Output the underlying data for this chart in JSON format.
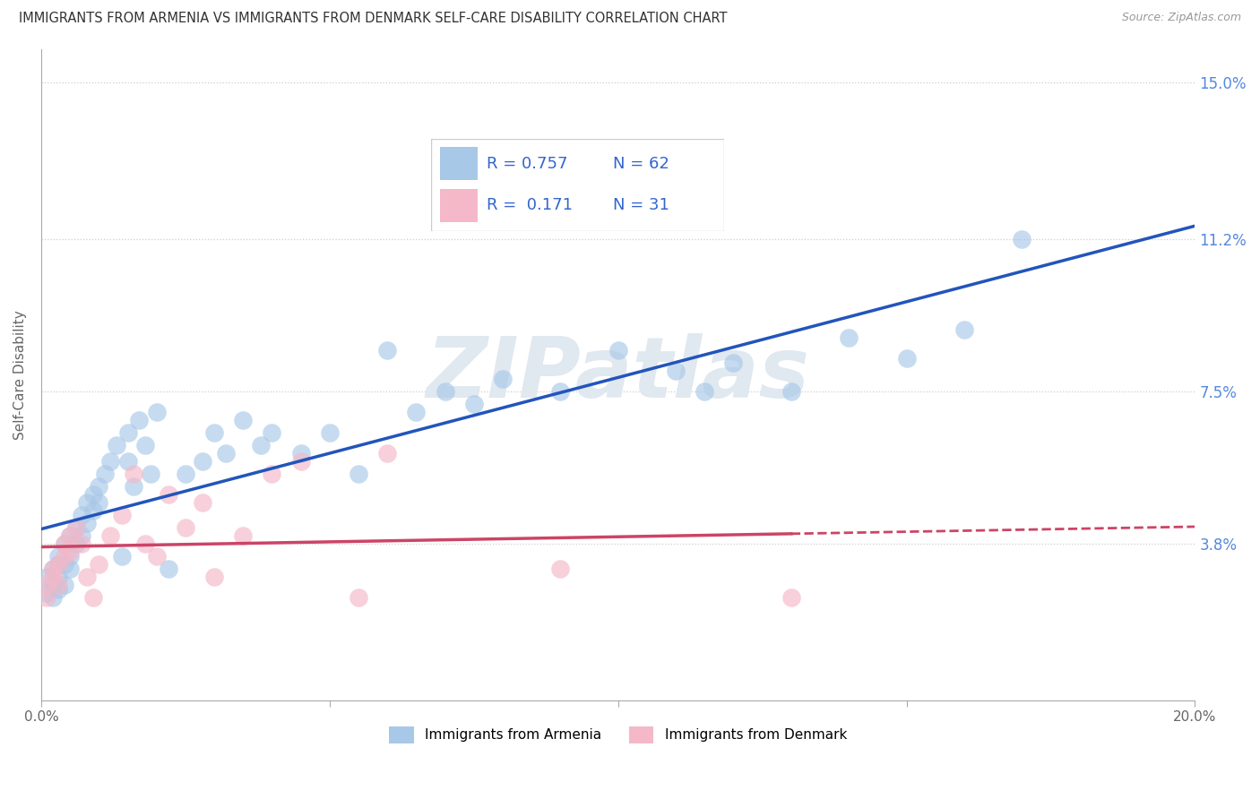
{
  "title": "IMMIGRANTS FROM ARMENIA VS IMMIGRANTS FROM DENMARK SELF-CARE DISABILITY CORRELATION CHART",
  "source": "Source: ZipAtlas.com",
  "ylabel": "Self-Care Disability",
  "xlim": [
    0.0,
    0.2
  ],
  "ylim": [
    0.0,
    0.158
  ],
  "yticks": [
    0.038,
    0.075,
    0.112,
    0.15
  ],
  "ytick_labels": [
    "3.8%",
    "7.5%",
    "11.2%",
    "15.0%"
  ],
  "xticks": [
    0.0,
    0.05,
    0.1,
    0.15,
    0.2
  ],
  "xtick_labels": [
    "0.0%",
    "",
    "",
    "",
    "20.0%"
  ],
  "r_armenia": 0.757,
  "n_armenia": 62,
  "r_denmark": 0.171,
  "n_denmark": 31,
  "color_armenia": "#a8c8e8",
  "color_denmark": "#f4b8c8",
  "color_armenia_line": "#2255bb",
  "color_denmark_line": "#cc4466",
  "legend_text_color": "#3366cc",
  "watermark_color": "#e0e8f0",
  "armenia_x": [
    0.001,
    0.001,
    0.002,
    0.002,
    0.002,
    0.003,
    0.003,
    0.003,
    0.003,
    0.004,
    0.004,
    0.004,
    0.005,
    0.005,
    0.005,
    0.006,
    0.006,
    0.007,
    0.007,
    0.008,
    0.008,
    0.009,
    0.009,
    0.01,
    0.01,
    0.011,
    0.012,
    0.013,
    0.014,
    0.015,
    0.015,
    0.016,
    0.017,
    0.018,
    0.019,
    0.02,
    0.022,
    0.025,
    0.028,
    0.03,
    0.032,
    0.035,
    0.038,
    0.04,
    0.045,
    0.05,
    0.055,
    0.06,
    0.065,
    0.07,
    0.075,
    0.08,
    0.09,
    0.1,
    0.11,
    0.115,
    0.12,
    0.13,
    0.14,
    0.15,
    0.16,
    0.17
  ],
  "armenia_y": [
    0.026,
    0.03,
    0.028,
    0.032,
    0.025,
    0.035,
    0.03,
    0.027,
    0.033,
    0.038,
    0.033,
    0.028,
    0.04,
    0.035,
    0.032,
    0.042,
    0.038,
    0.045,
    0.04,
    0.048,
    0.043,
    0.05,
    0.046,
    0.052,
    0.048,
    0.055,
    0.058,
    0.062,
    0.035,
    0.065,
    0.058,
    0.052,
    0.068,
    0.062,
    0.055,
    0.07,
    0.032,
    0.055,
    0.058,
    0.065,
    0.06,
    0.068,
    0.062,
    0.065,
    0.06,
    0.065,
    0.055,
    0.085,
    0.07,
    0.075,
    0.072,
    0.078,
    0.075,
    0.085,
    0.08,
    0.075,
    0.082,
    0.075,
    0.088,
    0.083,
    0.09,
    0.112
  ],
  "denmark_x": [
    0.001,
    0.001,
    0.002,
    0.002,
    0.003,
    0.003,
    0.004,
    0.004,
    0.005,
    0.005,
    0.006,
    0.007,
    0.008,
    0.009,
    0.01,
    0.012,
    0.014,
    0.016,
    0.018,
    0.02,
    0.022,
    0.025,
    0.028,
    0.03,
    0.035,
    0.04,
    0.045,
    0.055,
    0.06,
    0.09,
    0.13
  ],
  "denmark_y": [
    0.028,
    0.025,
    0.03,
    0.032,
    0.033,
    0.028,
    0.035,
    0.038,
    0.04,
    0.036,
    0.042,
    0.038,
    0.03,
    0.025,
    0.033,
    0.04,
    0.045,
    0.055,
    0.038,
    0.035,
    0.05,
    0.042,
    0.048,
    0.03,
    0.04,
    0.055,
    0.058,
    0.025,
    0.06,
    0.032,
    0.025
  ]
}
